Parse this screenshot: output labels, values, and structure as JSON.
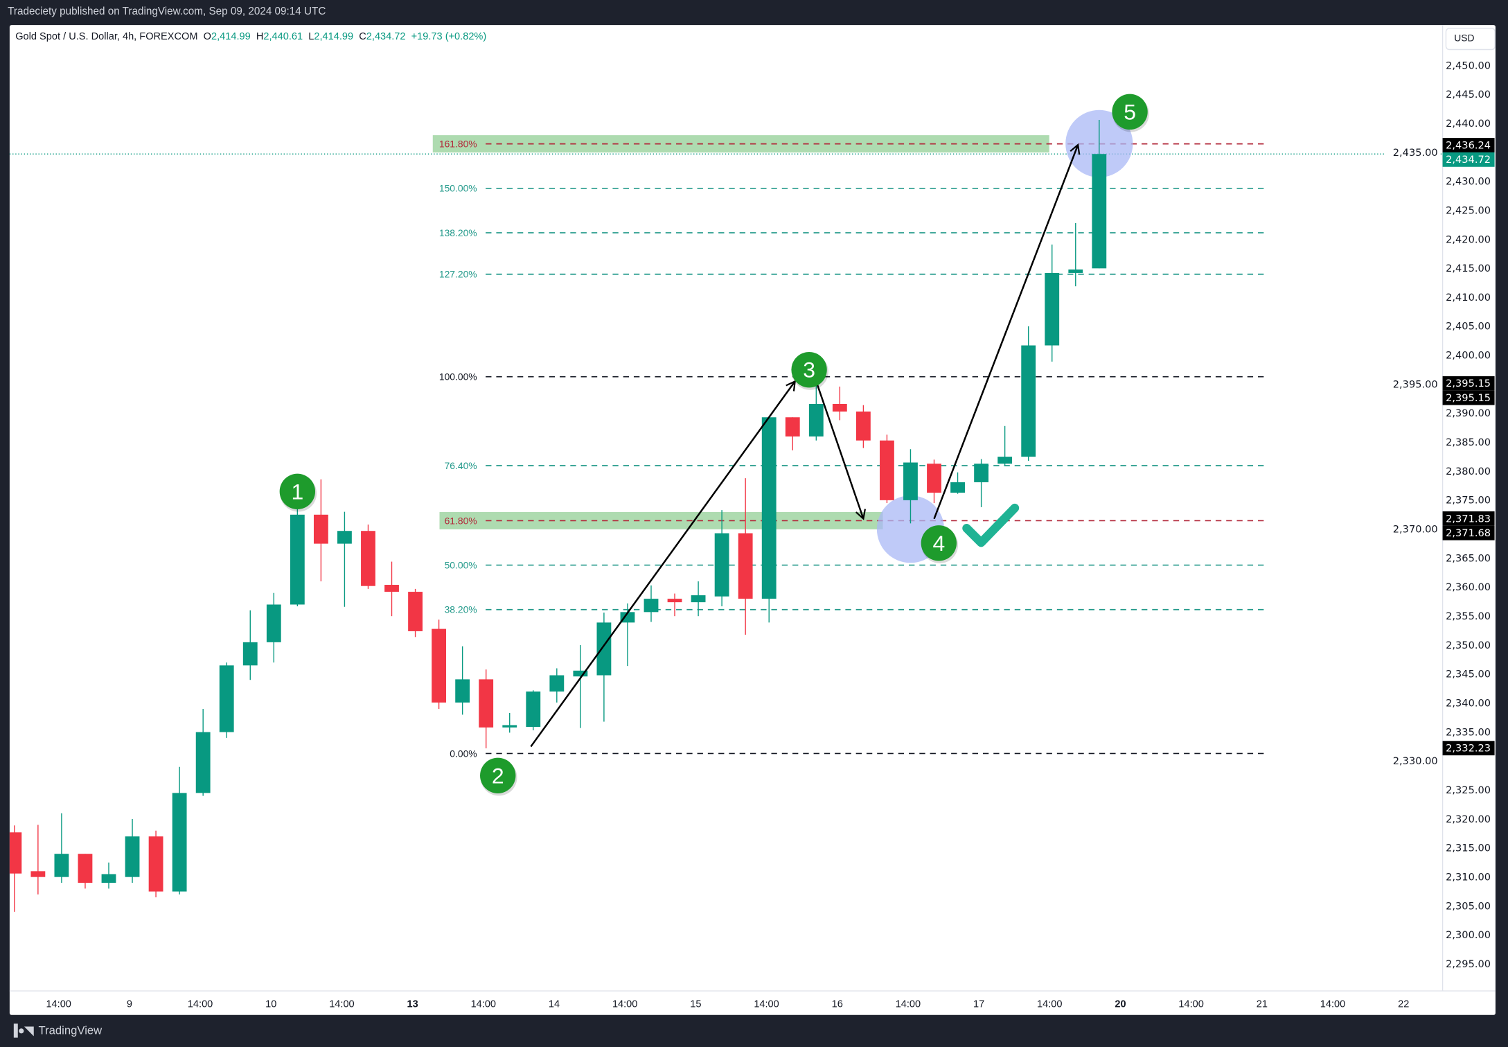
{
  "header": {
    "published": "Tradeciety published on TradingView.com, Sep 09, 2024 09:14 UTC"
  },
  "legend": {
    "symbol": "Gold Spot / U.S. Dollar, 4h, FOREXCOM",
    "o_label": "O",
    "o": "2,414.99",
    "h_label": "H",
    "h": "2,440.61",
    "l_label": "L",
    "l": "2,414.99",
    "c_label": "C",
    "c": "2,434.72",
    "change": "+19.73 (+0.82%)"
  },
  "currency_button": "USD",
  "footer": {
    "brand": "TradingView",
    "logo_icon": "tradingview-logo-icon"
  },
  "colors": {
    "up": "#089981",
    "down": "#f23645",
    "fib_teal": "#22998a",
    "fib_red": "#b2283a",
    "badge": "#1e9b2c",
    "circle": "#a9b8f5"
  },
  "chart_data": {
    "type": "candlestick",
    "title": "",
    "ylim": [
      2290,
      2452
    ],
    "y_ticks": [
      "2,450.00",
      "2,445.00",
      "2,440.00",
      "2,435.00",
      "2,430.00",
      "2,425.00",
      "2,420.00",
      "2,415.00",
      "2,410.00",
      "2,405.00",
      "2,400.00",
      "2,395.00",
      "2,390.00",
      "2,385.00",
      "2,380.00",
      "2,375.00",
      "2,370.00",
      "2,365.00",
      "2,360.00",
      "2,355.00",
      "2,350.00",
      "2,345.00",
      "2,340.00",
      "2,335.00",
      "2,330.00",
      "2,325.00",
      "2,320.00",
      "2,315.00",
      "2,310.00",
      "2,305.00",
      "2,300.00",
      "2,295.00"
    ],
    "y_tick_values": [
      2450,
      2445,
      2440,
      2435,
      2430,
      2425,
      2420,
      2415,
      2410,
      2405,
      2400,
      2395,
      2390,
      2385,
      2380,
      2375,
      2370,
      2365,
      2360,
      2355,
      2350,
      2345,
      2340,
      2335,
      2330,
      2325,
      2320,
      2315,
      2310,
      2305,
      2300,
      2295
    ],
    "x_ticks": [
      {
        "label": "14:00",
        "bold": false
      },
      {
        "label": "9",
        "bold": false
      },
      {
        "label": "14:00",
        "bold": false
      },
      {
        "label": "10",
        "bold": false
      },
      {
        "label": "14:00",
        "bold": false
      },
      {
        "label": "13",
        "bold": true
      },
      {
        "label": "14:00",
        "bold": false
      },
      {
        "label": "14",
        "bold": false
      },
      {
        "label": "14:00",
        "bold": false
      },
      {
        "label": "15",
        "bold": false
      },
      {
        "label": "14:00",
        "bold": false
      },
      {
        "label": "16",
        "bold": false
      },
      {
        "label": "14:00",
        "bold": false
      },
      {
        "label": "17",
        "bold": false
      },
      {
        "label": "14:00",
        "bold": false
      },
      {
        "label": "20",
        "bold": true
      },
      {
        "label": "14:00",
        "bold": false
      },
      {
        "label": "21",
        "bold": false
      },
      {
        "label": "14:00",
        "bold": false
      },
      {
        "label": "22",
        "bold": false
      }
    ],
    "candles": [
      [
        2317.7,
        2318.9,
        2304.0,
        2310.6
      ],
      [
        2311.0,
        2319.0,
        2307.0,
        2310.0
      ],
      [
        2310.0,
        2321.0,
        2309.0,
        2314.0
      ],
      [
        2314.0,
        2314.0,
        2308.0,
        2309.0
      ],
      [
        2309.0,
        2312.5,
        2308.0,
        2310.5
      ],
      [
        2310.0,
        2320.0,
        2309.0,
        2317.0
      ],
      [
        2317.0,
        2318.0,
        2306.5,
        2307.5
      ],
      [
        2307.5,
        2329.0,
        2307.0,
        2324.5
      ],
      [
        2324.5,
        2339.0,
        2324.0,
        2335.0
      ],
      [
        2335.0,
        2347.0,
        2334.0,
        2346.5
      ],
      [
        2346.5,
        2356.0,
        2344.0,
        2350.5
      ],
      [
        2350.5,
        2359.0,
        2347.0,
        2357.0
      ],
      [
        2357.0,
        2375.3,
        2356.7,
        2372.5
      ],
      [
        2372.5,
        2378.6,
        2361.0,
        2367.5
      ],
      [
        2367.5,
        2373.0,
        2356.6,
        2369.7
      ],
      [
        2369.7,
        2370.8,
        2359.7,
        2360.2
      ],
      [
        2360.4,
        2364.4,
        2355.0,
        2359.2
      ],
      [
        2359.2,
        2359.7,
        2351.4,
        2352.4
      ],
      [
        2352.8,
        2354.4,
        2339.0,
        2340.1
      ],
      [
        2340.1,
        2349.8,
        2338.0,
        2344.1
      ],
      [
        2344.1,
        2345.8,
        2332.2,
        2335.8
      ],
      [
        2335.8,
        2338.3,
        2334.9,
        2336.2
      ],
      [
        2335.9,
        2342.2,
        2335.3,
        2342.0
      ],
      [
        2342.0,
        2346.0,
        2340.1,
        2344.8
      ],
      [
        2344.6,
        2350.0,
        2335.7,
        2345.6
      ],
      [
        2344.8,
        2355.6,
        2336.8,
        2353.9
      ],
      [
        2353.9,
        2357.2,
        2346.4,
        2355.7
      ],
      [
        2355.7,
        2360.3,
        2354.0,
        2358.0
      ],
      [
        2358.0,
        2358.9,
        2355.0,
        2357.4
      ],
      [
        2357.4,
        2361.0,
        2355.0,
        2358.6
      ],
      [
        2358.4,
        2373.3,
        2356.7,
        2369.3
      ],
      [
        2369.3,
        2378.8,
        2351.8,
        2358.0
      ],
      [
        2358.0,
        2389.3,
        2353.9,
        2389.3
      ],
      [
        2389.3,
        2389.3,
        2383.6,
        2386.0
      ],
      [
        2386.0,
        2396.2,
        2385.3,
        2391.6
      ],
      [
        2391.6,
        2394.6,
        2388.8,
        2390.3
      ],
      [
        2390.3,
        2391.4,
        2384.0,
        2385.3
      ],
      [
        2385.3,
        2386.3,
        2374.5,
        2375.0
      ],
      [
        2375.0,
        2383.8,
        2371.0,
        2381.5
      ],
      [
        2381.3,
        2382.0,
        2374.5,
        2376.3
      ],
      [
        2376.3,
        2379.8,
        2376.1,
        2378.1
      ],
      [
        2378.1,
        2382.1,
        2373.8,
        2381.3
      ],
      [
        2381.3,
        2387.8,
        2381.0,
        2382.5
      ],
      [
        2382.5,
        2405.0,
        2381.8,
        2401.7
      ],
      [
        2401.7,
        2419.1,
        2398.9,
        2414.2
      ],
      [
        2414.2,
        2422.8,
        2411.9,
        2414.8
      ],
      [
        2414.99,
        2440.61,
        2414.99,
        2434.72
      ]
    ],
    "fib": {
      "price_0": 2331.3,
      "price_100": 2396.3,
      "levels": [
        {
          "ratio": 0,
          "label": "0.00%",
          "style": "black"
        },
        {
          "ratio": 0.382,
          "label": "38.20%",
          "style": "teal"
        },
        {
          "ratio": 0.5,
          "label": "50.00%",
          "style": "teal"
        },
        {
          "ratio": 0.618,
          "label": "61.80%",
          "style": "red",
          "zone": true
        },
        {
          "ratio": 0.764,
          "label": "76.40%",
          "style": "teal"
        },
        {
          "ratio": 1,
          "label": "100.00%",
          "style": "black"
        },
        {
          "ratio": 1.272,
          "label": "127.20%",
          "style": "teal"
        },
        {
          "ratio": 1.382,
          "label": "138.20%",
          "style": "teal"
        },
        {
          "ratio": 1.5,
          "label": "150.00%",
          "style": "teal"
        },
        {
          "ratio": 1.618,
          "label": "161.80%",
          "style": "red",
          "zone": true
        }
      ]
    },
    "price_labels": [
      {
        "value": 2436.24,
        "text": "2,436.24",
        "kind": "black"
      },
      {
        "value": 2434.72,
        "text": "2,434.72",
        "kind": "last"
      },
      {
        "value": 2395.15,
        "text": "2,395.15",
        "kind": "black",
        "offset": -1
      },
      {
        "value": 2395.15,
        "text": "2,395.15",
        "kind": "black",
        "offset": 1
      },
      {
        "value": 2371.83,
        "text": "2,371.83",
        "kind": "black",
        "offset": -1
      },
      {
        "value": 2371.68,
        "text": "2,371.68",
        "kind": "black",
        "offset": 1
      },
      {
        "value": 2332.23,
        "text": "2,332.23",
        "kind": "black"
      }
    ],
    "annotations": {
      "badges": [
        {
          "label": "1",
          "candle": 12,
          "price": 2376.5
        },
        {
          "label": "2",
          "candle": 20.5,
          "price": 2327.5
        },
        {
          "label": "3",
          "candle": 33.7,
          "price": 2397.5
        },
        {
          "label": "4",
          "candle": 39.2,
          "price": 2367.6
        },
        {
          "label": "5",
          "candle": 47.3,
          "price": 2442.0
        }
      ],
      "circles": [
        {
          "candle": 38.0,
          "price": 2370.0
        },
        {
          "candle": 46.0,
          "price": 2436.5
        }
      ],
      "arrows": [
        {
          "from": [
            21.9,
            2332.5
          ],
          "to": [
            33.1,
            2395.5
          ]
        },
        {
          "from": [
            34.0,
            2395.5
          ],
          "to": [
            36.0,
            2371.8
          ]
        },
        {
          "from": [
            39.0,
            2371.8
          ],
          "to": [
            45.1,
            2436.3
          ]
        }
      ],
      "checkmark": {
        "candle": 41.4,
        "price": 2371.0
      }
    }
  }
}
